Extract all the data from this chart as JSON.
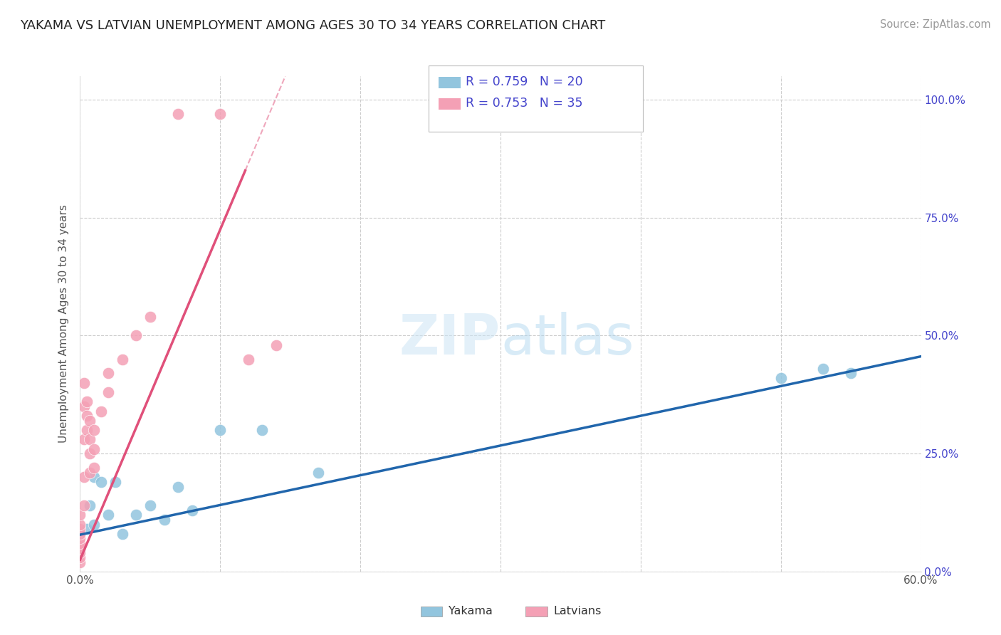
{
  "title": "YAKAMA VS LATVIAN UNEMPLOYMENT AMONG AGES 30 TO 34 YEARS CORRELATION CHART",
  "source_text": "Source: ZipAtlas.com",
  "ylabel": "Unemployment Among Ages 30 to 34 years",
  "watermark": "ZIPatlas",
  "xlim": [
    0.0,
    0.6
  ],
  "ylim": [
    0.0,
    1.05
  ],
  "xticks": [
    0.0,
    0.1,
    0.2,
    0.3,
    0.4,
    0.5,
    0.6
  ],
  "xticklabels": [
    "0.0%",
    "",
    "",
    "",
    "",
    "",
    "60.0%"
  ],
  "yticks": [
    0.0,
    0.25,
    0.5,
    0.75,
    1.0
  ],
  "yticklabels": [
    "0.0%",
    "25.0%",
    "50.0%",
    "75.0%",
    "100.0%"
  ],
  "yakama_color": "#92c5de",
  "latvian_color": "#f4a0b5",
  "yakama_line_color": "#2166ac",
  "latvian_line_color": "#e0507a",
  "yakama_r": 0.759,
  "yakama_n": 20,
  "latvian_r": 0.753,
  "latvian_n": 35,
  "legend_color": "#4444cc",
  "background_color": "#ffffff",
  "grid_color": "#cccccc",
  "yakama_points_x": [
    0.0,
    0.005,
    0.007,
    0.01,
    0.01,
    0.015,
    0.02,
    0.025,
    0.03,
    0.04,
    0.05,
    0.06,
    0.07,
    0.08,
    0.1,
    0.13,
    0.17,
    0.5,
    0.53,
    0.55
  ],
  "yakama_points_y": [
    0.08,
    0.09,
    0.14,
    0.1,
    0.2,
    0.19,
    0.12,
    0.19,
    0.08,
    0.12,
    0.14,
    0.11,
    0.18,
    0.13,
    0.3,
    0.3,
    0.21,
    0.41,
    0.43,
    0.42
  ],
  "latvian_points_x": [
    0.0,
    0.0,
    0.0,
    0.0,
    0.0,
    0.0,
    0.0,
    0.0,
    0.0,
    0.0,
    0.003,
    0.003,
    0.003,
    0.003,
    0.003,
    0.005,
    0.005,
    0.005,
    0.007,
    0.007,
    0.007,
    0.007,
    0.01,
    0.01,
    0.01,
    0.015,
    0.02,
    0.02,
    0.03,
    0.04,
    0.05,
    0.07,
    0.1,
    0.12,
    0.14
  ],
  "latvian_points_y": [
    0.02,
    0.03,
    0.04,
    0.05,
    0.06,
    0.07,
    0.08,
    0.09,
    0.1,
    0.12,
    0.14,
    0.2,
    0.28,
    0.35,
    0.4,
    0.3,
    0.33,
    0.36,
    0.21,
    0.25,
    0.28,
    0.32,
    0.22,
    0.26,
    0.3,
    0.34,
    0.38,
    0.42,
    0.45,
    0.5,
    0.54,
    0.97,
    0.97,
    0.45,
    0.48
  ],
  "yakama_slope": 0.63,
  "yakama_intercept": 0.078,
  "latvian_slope": 7.0,
  "latvian_intercept": 0.025
}
